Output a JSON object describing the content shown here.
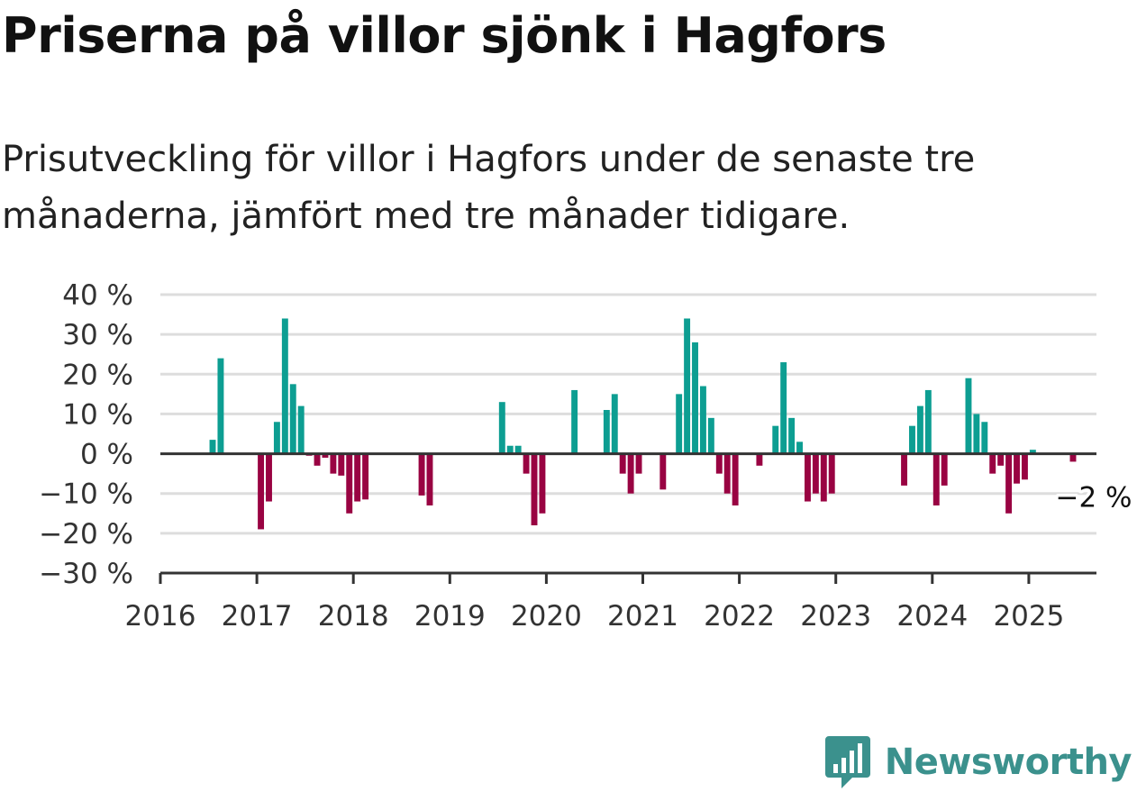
{
  "title": "Priserna på villor sjönk i Hagfors",
  "subtitle": "Prisutveckling för villor i Hagfors under de senaste tre månaderna, jämfört med tre månader tidigare.",
  "brand": {
    "name": "Newsworthy",
    "color": "#3b918d",
    "logo_icon": "bar-chart-pin-icon"
  },
  "chart_data": {
    "type": "bar",
    "title": "Priserna på villor sjönk i Hagfors",
    "subtitle": "Prisutveckling för villor i Hagfors under de senaste tre månaderna, jämfört med tre månader tidigare.",
    "xlabel": "",
    "ylabel": "",
    "y_unit": "%",
    "ylim": [
      -30,
      40
    ],
    "y_ticks": [
      40,
      30,
      20,
      10,
      0,
      -10,
      -20,
      -30
    ],
    "y_tick_labels": [
      "40 %",
      "30 %",
      "20 %",
      "10 %",
      "0 %",
      "−10 %",
      "−20 %",
      "−30 %"
    ],
    "x_range": [
      "2016-01",
      "2025-08"
    ],
    "x_ticks": [
      "2016",
      "2017",
      "2018",
      "2019",
      "2020",
      "2021",
      "2022",
      "2023",
      "2024",
      "2025"
    ],
    "grid": true,
    "colors": {
      "positive": "#0d9e92",
      "negative": "#990342",
      "grid": "#dddddd",
      "axis": "#333333"
    },
    "annotation": {
      "text": "−2 %",
      "month": "2025-06",
      "value": -2
    },
    "series": [
      {
        "months": [
          "2016-07",
          "2016-08",
          "2017-01",
          "2017-02",
          "2017-03",
          "2017-04",
          "2017-05",
          "2017-06",
          "2017-07",
          "2017-08",
          "2017-09",
          "2017-10",
          "2017-11",
          "2017-12",
          "2018-01",
          "2018-02",
          "2018-09",
          "2018-10",
          "2019-07",
          "2019-08",
          "2019-09",
          "2019-10",
          "2019-11",
          "2019-12",
          "2020-04",
          "2020-08",
          "2020-09",
          "2020-10",
          "2020-11",
          "2020-12",
          "2021-03",
          "2021-05",
          "2021-06",
          "2021-07",
          "2021-08",
          "2021-09",
          "2021-10",
          "2021-11",
          "2021-12",
          "2022-03",
          "2022-05",
          "2022-06",
          "2022-07",
          "2022-08",
          "2022-09",
          "2022-10",
          "2022-11",
          "2022-12",
          "2023-09",
          "2023-10",
          "2023-11",
          "2023-12",
          "2024-01",
          "2024-02",
          "2024-05",
          "2024-06",
          "2024-07",
          "2024-08",
          "2024-09",
          "2024-10",
          "2024-11",
          "2024-12",
          "2025-01",
          "2025-06"
        ],
        "values": [
          3.5,
          24,
          -19,
          -12,
          8,
          34,
          17.5,
          12,
          -0.5,
          -3,
          -1,
          -5,
          -5.5,
          -15,
          -12,
          -11.5,
          -10.5,
          -13,
          13,
          2,
          2,
          -5,
          -18,
          -15,
          16,
          11,
          15,
          -5,
          -10,
          -5,
          -9,
          15,
          34,
          28,
          17,
          9,
          -5,
          -10,
          -13,
          -3,
          7,
          23,
          9,
          3,
          -12,
          -10,
          -12,
          -10,
          -8,
          7,
          12,
          16,
          -13,
          -8,
          19,
          10,
          8,
          -5,
          -3,
          -15,
          -7.5,
          -6.5,
          1,
          -2
        ]
      }
    ]
  }
}
